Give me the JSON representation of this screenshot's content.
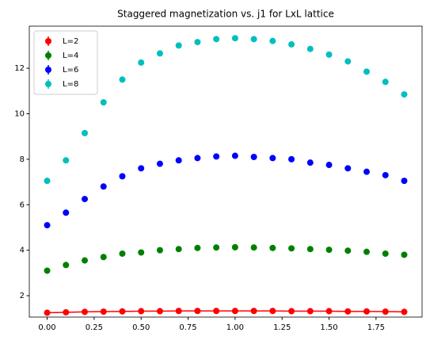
{
  "chart_data": {
    "type": "scatter",
    "title": "Staggered magnetization vs. j1 for LxL lattice",
    "x": [
      0,
      0.1,
      0.2,
      0.3,
      0.4,
      0.5,
      0.6,
      0.7,
      0.8,
      0.9,
      1.0,
      1.1,
      1.2,
      1.3,
      1.4,
      1.5,
      1.6,
      1.7,
      1.8,
      1.9
    ],
    "series": [
      {
        "name": "L=2",
        "color": "#ff0000",
        "lines": true,
        "values": [
          1.25,
          1.27,
          1.29,
          1.3,
          1.31,
          1.32,
          1.32,
          1.33,
          1.33,
          1.33,
          1.33,
          1.33,
          1.33,
          1.32,
          1.32,
          1.32,
          1.31,
          1.31,
          1.3,
          1.29
        ]
      },
      {
        "name": "L=4",
        "color": "#008000",
        "lines": false,
        "values": [
          3.1,
          3.35,
          3.55,
          3.7,
          3.85,
          3.9,
          4.0,
          4.05,
          4.1,
          4.12,
          4.13,
          4.12,
          4.1,
          4.08,
          4.05,
          4.02,
          3.98,
          3.93,
          3.85,
          3.8
        ]
      },
      {
        "name": "L=6",
        "color": "#0000ff",
        "lines": false,
        "values": [
          5.1,
          5.65,
          6.25,
          6.8,
          7.25,
          7.6,
          7.8,
          7.95,
          8.05,
          8.12,
          8.15,
          8.1,
          8.05,
          8.0,
          7.85,
          7.75,
          7.6,
          7.45,
          7.3,
          7.05
        ]
      },
      {
        "name": "L=8",
        "color": "#00bfbf",
        "lines": false,
        "values": [
          7.05,
          7.95,
          9.15,
          10.5,
          11.5,
          12.25,
          12.65,
          13.0,
          13.15,
          13.28,
          13.32,
          13.28,
          13.2,
          13.05,
          12.85,
          12.6,
          12.3,
          11.85,
          11.4,
          10.85
        ]
      }
    ],
    "xlim": [
      -0.095,
      1.995
    ],
    "xticks": [
      {
        "value": 0,
        "label": "0.00"
      },
      {
        "value": 0.25,
        "label": "0.25"
      },
      {
        "value": 0.5,
        "label": "0.50"
      },
      {
        "value": 0.75,
        "label": "0.75"
      },
      {
        "value": 1,
        "label": "1.00"
      },
      {
        "value": 1.25,
        "label": "1.25"
      },
      {
        "value": 1.5,
        "label": "1.50"
      },
      {
        "value": 1.75,
        "label": "1.75"
      }
    ],
    "ylim": [
      1.06,
      13.85
    ],
    "yticks": [
      2,
      4,
      6,
      8,
      10,
      12
    ],
    "legend": "upper left"
  }
}
